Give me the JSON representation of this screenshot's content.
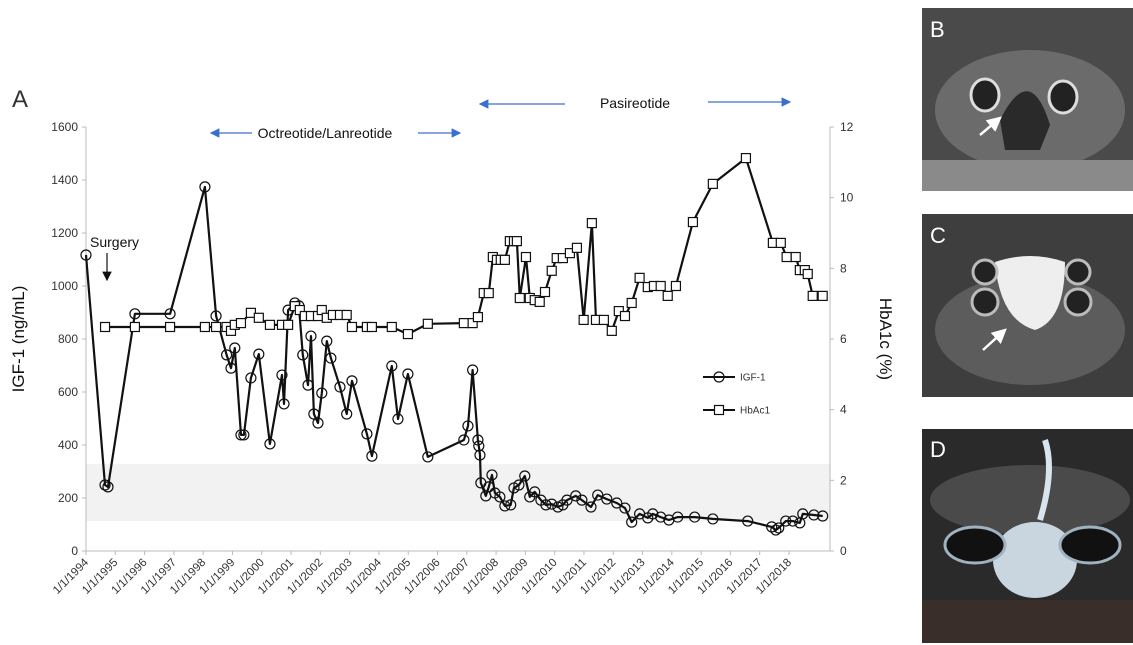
{
  "chart_data": {
    "type": "line",
    "panel_labels": [
      "A",
      "B",
      "C",
      "D"
    ],
    "ylabel": "IGF-1 (ng/mL)",
    "y2label": "HbA1c (%)",
    "annotations": [
      "Surgery",
      "Octreotide/Lanreotide",
      "Pasireotide"
    ],
    "xlim": [
      1994,
      2019.4
    ],
    "xticks": [
      {
        "value": 1994,
        "label": "1/1/1994"
      },
      {
        "value": 1995,
        "label": "1/1/1995"
      },
      {
        "value": 1996,
        "label": "1/1/1996"
      },
      {
        "value": 1997,
        "label": "1/1/1997"
      },
      {
        "value": 1998,
        "label": "1/1/1998"
      },
      {
        "value": 1999,
        "label": "1/1/1999"
      },
      {
        "value": 2000,
        "label": "1/1/2000"
      },
      {
        "value": 2001,
        "label": "1/1/2001"
      },
      {
        "value": 2002,
        "label": "1/1/2002"
      },
      {
        "value": 2003,
        "label": "1/1/2003"
      },
      {
        "value": 2004,
        "label": "1/1/2004"
      },
      {
        "value": 2005,
        "label": "1/1/2005"
      },
      {
        "value": 2006,
        "label": "1/1/2006"
      },
      {
        "value": 2007,
        "label": "1/1/2007"
      },
      {
        "value": 2008,
        "label": "1/1/2008"
      },
      {
        "value": 2009,
        "label": "1/1/2009"
      },
      {
        "value": 2010,
        "label": "1/1/2010"
      },
      {
        "value": 2011,
        "label": "1/1/2011"
      },
      {
        "value": 2012,
        "label": "1/1/2012"
      },
      {
        "value": 2013,
        "label": "1/1/2013"
      },
      {
        "value": 2014,
        "label": "1/1/2014"
      },
      {
        "value": 2015,
        "label": "1/1/2015"
      },
      {
        "value": 2016,
        "label": "1/1/2016"
      },
      {
        "value": 2017,
        "label": "1/1/2017"
      },
      {
        "value": 2018,
        "label": "1/1/2018"
      }
    ],
    "ylim": [
      0,
      1600
    ],
    "yticks": [
      0,
      200,
      400,
      600,
      800,
      1000,
      1200,
      1400,
      1600
    ],
    "y2lim": [
      0,
      12
    ],
    "y2ticks": [
      0,
      2,
      4,
      6,
      8,
      10,
      12
    ],
    "shaded_range": [
      113,
      328
    ],
    "series": [
      {
        "name": "IGF-1",
        "color": "#111111",
        "marker": "circle",
        "x": [
          1994.0,
          1994.65,
          1994.75,
          1995.67,
          1996.87,
          1998.06,
          1998.44,
          1998.8,
          1998.95,
          1999.08,
          1999.29,
          1999.39,
          1999.63,
          1999.9,
          2000.28,
          2000.69,
          2000.76,
          2000.9,
          2001.13,
          2001.27,
          2001.4,
          2001.58,
          2001.68,
          2001.78,
          2001.92,
          2002.05,
          2002.22,
          2002.36,
          2002.67,
          2002.9,
          2003.08,
          2003.59,
          2003.76,
          2004.44,
          2004.65,
          2004.99,
          2005.67,
          2006.9,
          2007.04,
          2007.2,
          2007.38,
          2007.41,
          2007.45,
          2007.48,
          2007.65,
          2007.75,
          2007.86,
          2007.96,
          2008.13,
          2008.3,
          2008.5,
          2008.61,
          2008.78,
          2008.98,
          2009.15,
          2009.32,
          2009.53,
          2009.7,
          2009.9,
          2010.11,
          2010.28,
          2010.42,
          2010.72,
          2010.93,
          2011.24,
          2011.47,
          2011.78,
          2012.12,
          2012.4,
          2012.63,
          2012.9,
          2013.18,
          2013.35,
          2013.62,
          2013.9,
          2014.2,
          2014.78,
          2015.4,
          2016.59,
          2017.41,
          2017.55,
          2017.65,
          2017.89,
          2018.13,
          2018.37,
          2018.47,
          2018.85,
          2019.15
        ],
        "values": [
          1117,
          249,
          242,
          895,
          895,
          1374,
          887,
          740,
          690,
          766,
          438,
          438,
          653,
          743,
          404,
          664,
          555,
          909,
          936,
          925,
          740,
          626,
          811,
          517,
          483,
          596,
          792,
          728,
          619,
          517,
          642,
          442,
          358,
          698,
          498,
          668,
          355,
          419,
          472,
          683,
          419,
          396,
          362,
          257,
          208,
          242,
          287,
          219,
          204,
          170,
          174,
          238,
          249,
          283,
          204,
          223,
          192,
          174,
          177,
          166,
          174,
          192,
          208,
          192,
          166,
          211,
          196,
          181,
          162,
          109,
          140,
          125,
          140,
          128,
          117,
          128,
          128,
          121,
          113,
          91,
          79,
          87,
          113,
          113,
          106,
          140,
          136,
          132
        ]
      },
      {
        "name": "HbAc1",
        "color": "#111111",
        "marker": "square",
        "axis": "y2",
        "x": [
          1994.65,
          1995.67,
          1996.87,
          1998.06,
          1998.44,
          1998.8,
          1998.95,
          1999.08,
          1999.29,
          1999.63,
          1999.9,
          2000.28,
          2000.69,
          2000.9,
          2001.13,
          2001.3,
          2001.47,
          2001.68,
          2001.92,
          2002.05,
          2002.22,
          2002.43,
          2002.67,
          2002.9,
          2003.08,
          2003.59,
          2003.76,
          2004.44,
          2004.99,
          2005.67,
          2006.9,
          2007.2,
          2007.38,
          2007.58,
          2007.75,
          2007.89,
          2008.03,
          2008.16,
          2008.3,
          2008.47,
          2008.61,
          2008.71,
          2008.81,
          2009.02,
          2009.15,
          2009.32,
          2009.49,
          2009.67,
          2009.9,
          2010.07,
          2010.28,
          2010.52,
          2010.76,
          2010.99,
          2011.27,
          2011.41,
          2011.68,
          2011.95,
          2012.19,
          2012.4,
          2012.63,
          2012.9,
          2013.18,
          2013.39,
          2013.62,
          2013.86,
          2014.14,
          2014.72,
          2015.4,
          2016.53,
          2017.45,
          2017.72,
          2017.92,
          2018.23,
          2018.37,
          2018.54,
          2018.64,
          2018.81,
          2019.15
        ],
        "values": [
          6.34,
          6.34,
          6.34,
          6.34,
          6.34,
          6.34,
          6.23,
          6.4,
          6.45,
          6.74,
          6.6,
          6.4,
          6.4,
          6.4,
          6.93,
          6.82,
          6.65,
          6.65,
          6.65,
          6.82,
          6.6,
          6.68,
          6.68,
          6.68,
          6.34,
          6.34,
          6.34,
          6.34,
          6.14,
          6.43,
          6.45,
          6.45,
          6.62,
          7.3,
          7.3,
          8.32,
          8.24,
          8.24,
          8.24,
          8.77,
          8.77,
          8.77,
          7.16,
          8.32,
          7.16,
          7.1,
          7.05,
          7.33,
          7.93,
          8.29,
          8.29,
          8.43,
          8.58,
          6.54,
          9.28,
          6.54,
          6.54,
          6.23,
          6.79,
          6.65,
          7.02,
          7.73,
          7.47,
          7.5,
          7.5,
          7.22,
          7.5,
          9.31,
          10.39,
          11.12,
          8.72,
          8.72,
          8.32,
          8.32,
          7.95,
          7.95,
          7.84,
          7.22,
          7.22
        ]
      }
    ]
  }
}
